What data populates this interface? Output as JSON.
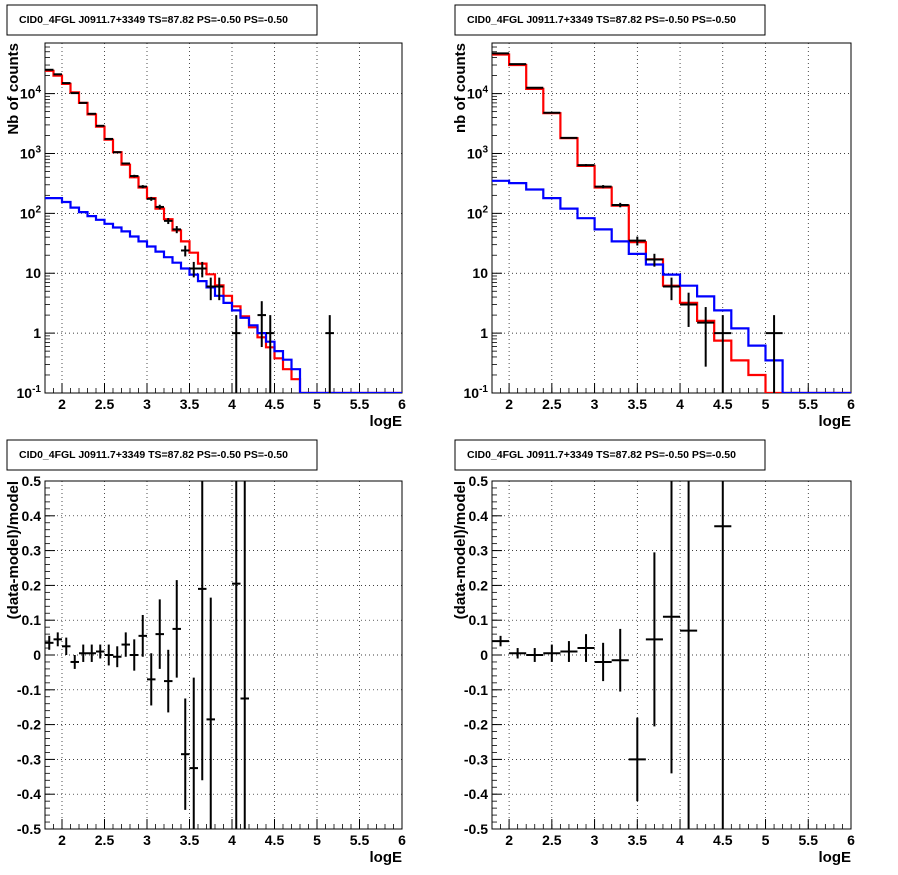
{
  "chart_data": [
    {
      "type": "histogram",
      "title": "CID0_4FGL J0911.7+3349 TS=87.82 PS=-0.50 PS=-0.50",
      "xlabel": "logE",
      "ylabel": "Nb of counts",
      "xlim": [
        1.8,
        6.0
      ],
      "ylim": [
        0.1,
        70000
      ],
      "log_y": true,
      "grid": true,
      "x_ticks": [
        "2",
        "2.5",
        "3",
        "3.5",
        "4",
        "4.5",
        "5",
        "5.5",
        "6"
      ],
      "y_ticks": [
        "10^{-1}",
        "1",
        "10",
        "10^{2}",
        "10^{3}",
        "10^{4}"
      ],
      "series": [
        {
          "role": "model_total",
          "color": "#ff0000",
          "x_edges": [
            1.8,
            1.9,
            2.0,
            2.1,
            2.2,
            2.3,
            2.4,
            2.5,
            2.6,
            2.7,
            2.8,
            2.9,
            3.0,
            3.1,
            3.2,
            3.3,
            3.4,
            3.5,
            3.6,
            3.7,
            3.8,
            3.9,
            4.0,
            4.1,
            4.2,
            4.3,
            4.4,
            4.5,
            4.6,
            4.7,
            4.8,
            4.9,
            5.0,
            5.1,
            5.2,
            5.3,
            5.4,
            5.5,
            5.6,
            5.7,
            5.8,
            5.9,
            6.0
          ],
          "values": [
            24000,
            20000,
            14500,
            10500,
            7000,
            4500,
            2800,
            1700,
            1050,
            650,
            400,
            270,
            180,
            120,
            80,
            52,
            34,
            22,
            14.5,
            9.6,
            6.3,
            4.2,
            2.8,
            1.9,
            1.25,
            0.85,
            0.58,
            0.38,
            0.25,
            0.17,
            0.1,
            0.1,
            0.1,
            0.1,
            0.1,
            0.1,
            0.1,
            0.1,
            0.1,
            0.1,
            0.1,
            0.1
          ]
        },
        {
          "role": "model_background",
          "color": "#0000ff",
          "x_edges": [
            1.8,
            1.9,
            2.0,
            2.1,
            2.2,
            2.3,
            2.4,
            2.5,
            2.6,
            2.7,
            2.8,
            2.9,
            3.0,
            3.1,
            3.2,
            3.3,
            3.4,
            3.5,
            3.6,
            3.7,
            3.8,
            3.9,
            4.0,
            4.1,
            4.2,
            4.3,
            4.4,
            4.5,
            4.6,
            4.7,
            4.8,
            4.9,
            5.0,
            5.1,
            5.2,
            5.3,
            5.4,
            5.5,
            5.6,
            5.7,
            5.8,
            5.9,
            6.0
          ],
          "values": [
            180,
            180,
            155,
            125,
            105,
            90,
            78,
            67,
            58,
            50,
            41,
            34,
            28,
            23,
            18.5,
            15,
            12,
            9.5,
            7.4,
            5.8,
            4.2,
            3.2,
            2.4,
            1.8,
            1.35,
            1.0,
            0.72,
            0.5,
            0.36,
            0.25,
            0.1,
            0.1,
            0.1,
            0.1,
            0.1,
            0.1,
            0.1,
            0.1,
            0.1,
            0.1,
            0.1,
            0.1
          ]
        }
      ],
      "points": {
        "color": "#000000",
        "x": [
          1.85,
          1.95,
          2.05,
          2.15,
          2.25,
          2.35,
          2.45,
          2.55,
          2.65,
          2.75,
          2.85,
          2.95,
          3.05,
          3.15,
          3.25,
          3.35,
          3.45,
          3.55,
          3.65,
          3.75,
          3.85,
          4.05,
          4.35,
          4.45,
          5.15
        ],
        "y": [
          25000,
          21000,
          15000,
          10200,
          7000,
          4600,
          2900,
          1750,
          1050,
          680,
          420,
          280,
          175,
          128,
          75,
          54,
          24,
          12,
          12,
          6,
          6,
          1,
          2,
          1,
          1
        ],
        "xerr": 0.05
      }
    },
    {
      "type": "histogram",
      "title": "CID0_4FGL J0911.7+3349 TS=87.82 PS=-0.50 PS=-0.50",
      "xlabel": "logE",
      "ylabel": "nb of counts",
      "xlim": [
        1.8,
        6.0
      ],
      "ylim": [
        0.1,
        70000
      ],
      "log_y": true,
      "grid": true,
      "x_ticks": [
        "2",
        "2.5",
        "3",
        "3.5",
        "4",
        "4.5",
        "5",
        "5.5",
        "6"
      ],
      "y_ticks": [
        "10^{-1}",
        "1",
        "10",
        "10^{2}",
        "10^{3}",
        "10^{4}"
      ],
      "series": [
        {
          "role": "model_total",
          "color": "#ff0000",
          "x_edges": [
            1.8,
            2.0,
            2.2,
            2.4,
            2.6,
            2.8,
            3.0,
            3.2,
            3.4,
            3.6,
            3.8,
            4.0,
            4.2,
            4.4,
            4.6,
            4.8,
            5.0,
            5.2,
            5.4,
            5.6,
            5.8,
            6.0
          ],
          "values": [
            45000,
            30000,
            12000,
            4700,
            1800,
            620,
            270,
            135,
            33,
            17,
            6.2,
            3.2,
            1.6,
            0.75,
            0.35,
            0.2,
            0.1,
            0.1,
            0.1,
            0.1,
            0.1
          ],
          "color_name": "red"
        },
        {
          "role": "model_background",
          "color": "#0000ff",
          "x_edges": [
            1.8,
            2.0,
            2.2,
            2.4,
            2.6,
            2.8,
            3.0,
            3.2,
            3.4,
            3.6,
            3.8,
            4.0,
            4.2,
            4.4,
            4.6,
            4.8,
            5.0,
            5.2,
            5.4,
            5.6,
            5.8,
            6.0
          ],
          "values": [
            350,
            320,
            250,
            180,
            120,
            83,
            54,
            34,
            21,
            14,
            9.5,
            6.2,
            4.1,
            2.4,
            1.2,
            0.62,
            0.35,
            0.1,
            0.1,
            0.1,
            0.1
          ]
        }
      ],
      "points": {
        "color": "#000000",
        "x": [
          1.9,
          2.1,
          2.3,
          2.5,
          2.7,
          2.9,
          3.1,
          3.3,
          3.5,
          3.7,
          3.9,
          4.1,
          4.3,
          4.5,
          5.1
        ],
        "y": [
          47000,
          31000,
          12500,
          4800,
          1820,
          640,
          280,
          138,
          35,
          17,
          6,
          3,
          1.5,
          1,
          1
        ],
        "xerr": 0.1
      }
    },
    {
      "type": "scatter",
      "title": "CID0_4FGL J0911.7+3349 TS=87.82 PS=-0.50 PS=-0.50",
      "xlabel": "logE",
      "ylabel": "(data-model)/model",
      "xlim": [
        1.8,
        6.0
      ],
      "ylim": [
        -0.5,
        0.5
      ],
      "grid": true,
      "x_ticks": [
        "2",
        "2.5",
        "3",
        "3.5",
        "4",
        "4.5",
        "5",
        "5.5",
        "6"
      ],
      "y_ticks": [
        "-0.5",
        "-0.4",
        "-0.3",
        "-0.2",
        "-0.1",
        "0",
        "0.1",
        "0.2",
        "0.3",
        "0.4",
        "0.5"
      ],
      "points": {
        "color": "#000000",
        "x": [
          1.85,
          1.95,
          2.05,
          2.15,
          2.25,
          2.35,
          2.45,
          2.55,
          2.65,
          2.75,
          2.85,
          2.95,
          3.05,
          3.15,
          3.25,
          3.35,
          3.45,
          3.55,
          3.65,
          3.75,
          4.05,
          4.15
        ],
        "y": [
          0.035,
          0.045,
          0.025,
          -0.02,
          0.005,
          0.005,
          0.01,
          0.0,
          -0.005,
          0.03,
          0.0,
          0.055,
          -0.07,
          0.06,
          -0.075,
          0.075,
          -0.285,
          -0.325,
          0.19,
          -0.185,
          0.205,
          -0.125
        ],
        "yerr": [
          0.02,
          0.02,
          0.025,
          0.02,
          0.025,
          0.025,
          0.02,
          0.03,
          0.03,
          0.035,
          0.045,
          0.06,
          0.075,
          0.1,
          0.09,
          0.14,
          0.16,
          0.26,
          0.55,
          0.35,
          0.85,
          0.85
        ],
        "xerr": 0.05
      }
    },
    {
      "type": "scatter",
      "title": "CID0_4FGL J0911.7+3349 TS=87.82 PS=-0.50 PS=-0.50",
      "xlabel": "logE",
      "ylabel": "(data-model)/model",
      "xlim": [
        1.8,
        6.0
      ],
      "ylim": [
        -0.5,
        0.5
      ],
      "grid": true,
      "x_ticks": [
        "2",
        "2.5",
        "3",
        "3.5",
        "4",
        "4.5",
        "5",
        "5.5",
        "6"
      ],
      "y_ticks": [
        "-0.5",
        "-0.4",
        "-0.3",
        "-0.2",
        "-0.1",
        "0",
        "0.1",
        "0.2",
        "0.3",
        "0.4",
        "0.5"
      ],
      "points": {
        "color": "#000000",
        "x": [
          1.9,
          2.1,
          2.3,
          2.5,
          2.7,
          2.9,
          3.1,
          3.3,
          3.5,
          3.7,
          3.9,
          4.1,
          4.5
        ],
        "y": [
          0.04,
          0.005,
          0.0,
          0.005,
          0.01,
          0.02,
          -0.02,
          -0.015,
          -0.3,
          0.045,
          0.11,
          0.07,
          0.37
        ],
        "yerr": [
          0.015,
          0.015,
          0.02,
          0.025,
          0.03,
          0.04,
          0.055,
          0.09,
          0.12,
          0.25,
          0.45,
          0.9,
          0.9
        ],
        "xerr": 0.1
      }
    }
  ]
}
